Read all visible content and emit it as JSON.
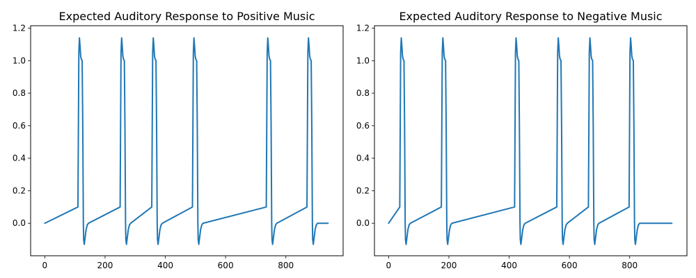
{
  "chart_data": [
    {
      "type": "line",
      "title": "Expected Auditory Response to Positive Music",
      "xlabel": "",
      "ylabel": "",
      "xlim": [
        -47,
        990
      ],
      "ylim": [
        -0.2,
        1.215
      ],
      "xticks": [
        0,
        200,
        400,
        600,
        800
      ],
      "yticks": [
        0.0,
        0.2,
        0.4,
        0.6,
        0.8,
        1.0,
        1.2
      ],
      "xtick_labels": [
        "0",
        "200",
        "400",
        "600",
        "800"
      ],
      "ytick_labels": [
        "0.0",
        "0.2",
        "0.4",
        "0.6",
        "0.8",
        "1.0",
        "1.2"
      ],
      "x_max": 940,
      "onsets": [
        110,
        250,
        355,
        490,
        735,
        870
      ],
      "pulse_profile": [
        [
          0,
          0.1
        ],
        [
          3,
          1.05
        ],
        [
          5,
          1.14
        ],
        [
          7,
          1.09
        ],
        [
          9,
          1.03
        ],
        [
          11,
          1.01
        ],
        [
          14,
          1.0
        ],
        [
          16,
          0.6
        ],
        [
          18,
          0.0
        ],
        [
          19,
          -0.1
        ],
        [
          21,
          -0.13
        ],
        [
          23,
          -0.1
        ],
        [
          27,
          -0.04
        ],
        [
          31,
          -0.01
        ],
        [
          35,
          0.0
        ]
      ],
      "grid": false,
      "legend": false,
      "series": [
        {
          "color": "#1f77b4"
        }
      ]
    },
    {
      "type": "line",
      "title": "Expected Auditory Response to Negative Music",
      "xlabel": "",
      "ylabel": "",
      "xlim": [
        -47,
        990
      ],
      "ylim": [
        -0.2,
        1.215
      ],
      "xticks": [
        0,
        200,
        400,
        600,
        800
      ],
      "yticks": [
        0.0,
        0.2,
        0.4,
        0.6,
        0.8,
        1.0,
        1.2
      ],
      "xtick_labels": [
        "0",
        "200",
        "400",
        "600",
        "800"
      ],
      "ytick_labels": [
        "0.0",
        "0.2",
        "0.4",
        "0.6",
        "0.8",
        "1.0",
        "1.2"
      ],
      "x_max": 940,
      "onsets": [
        37,
        175,
        418,
        558,
        663,
        798
      ],
      "pulse_profile": [
        [
          0,
          0.1
        ],
        [
          3,
          1.05
        ],
        [
          5,
          1.14
        ],
        [
          7,
          1.09
        ],
        [
          9,
          1.03
        ],
        [
          11,
          1.01
        ],
        [
          14,
          1.0
        ],
        [
          16,
          0.6
        ],
        [
          18,
          0.0
        ],
        [
          19,
          -0.1
        ],
        [
          21,
          -0.13
        ],
        [
          23,
          -0.1
        ],
        [
          27,
          -0.04
        ],
        [
          31,
          -0.01
        ],
        [
          35,
          0.0
        ]
      ],
      "grid": false,
      "legend": false,
      "series": [
        {
          "color": "#1f77b4"
        }
      ]
    }
  ]
}
